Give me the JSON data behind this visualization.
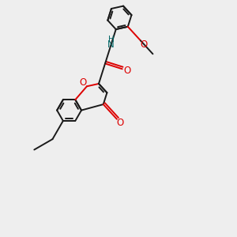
{
  "bg_color": "#eeeeee",
  "bond_color": "#1a1a1a",
  "bond_width": 1.4,
  "o_color": "#dd0000",
  "n_color": "#006666",
  "font_size": 8.5,
  "fig_size": [
    3.0,
    3.0
  ],
  "dpi": 100,
  "xlim": [
    0,
    10
  ],
  "ylim": [
    0,
    10
  ]
}
